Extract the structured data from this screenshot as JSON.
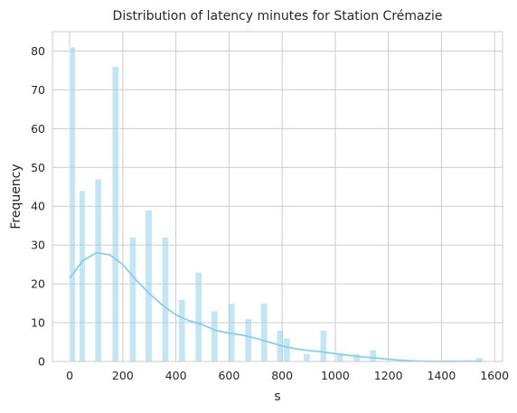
{
  "chart_data": {
    "type": "bar",
    "title": "Distribution of latency minutes for Station Crémazie",
    "xlabel": "s",
    "ylabel": "Frequency",
    "xlim": [
      -65,
      1630
    ],
    "ylim": [
      0,
      85
    ],
    "xticks": [
      0,
      200,
      400,
      600,
      800,
      1000,
      1200,
      1400,
      1600
    ],
    "yticks": [
      0,
      10,
      20,
      30,
      40,
      50,
      60,
      70,
      80
    ],
    "grid": true,
    "bar_color": "#87ceeb",
    "kde_color": "#87ceeb",
    "bins": [
      {
        "x0": 0,
        "x1": 21,
        "count": 81
      },
      {
        "x0": 36,
        "x1": 58,
        "count": 44
      },
      {
        "x0": 95,
        "x1": 120,
        "count": 47
      },
      {
        "x0": 160,
        "x1": 185,
        "count": 76
      },
      {
        "x0": 225,
        "x1": 250,
        "count": 32
      },
      {
        "x0": 285,
        "x1": 310,
        "count": 39
      },
      {
        "x0": 348,
        "x1": 373,
        "count": 32
      },
      {
        "x0": 410,
        "x1": 435,
        "count": 16
      },
      {
        "x0": 473,
        "x1": 498,
        "count": 23
      },
      {
        "x0": 533,
        "x1": 558,
        "count": 13
      },
      {
        "x0": 597,
        "x1": 622,
        "count": 15
      },
      {
        "x0": 660,
        "x1": 685,
        "count": 11
      },
      {
        "x0": 720,
        "x1": 745,
        "count": 15
      },
      {
        "x0": 780,
        "x1": 805,
        "count": 8
      },
      {
        "x0": 805,
        "x1": 830,
        "count": 6
      },
      {
        "x0": 880,
        "x1": 905,
        "count": 2
      },
      {
        "x0": 943,
        "x1": 968,
        "count": 8
      },
      {
        "x0": 1005,
        "x1": 1030,
        "count": 2
      },
      {
        "x0": 1068,
        "x1": 1093,
        "count": 2
      },
      {
        "x0": 1130,
        "x1": 1155,
        "count": 3
      },
      {
        "x0": 1530,
        "x1": 1555,
        "count": 1
      }
    ],
    "kde": {
      "x": [
        0,
        50,
        100,
        150,
        200,
        250,
        300,
        350,
        400,
        450,
        500,
        550,
        600,
        650,
        700,
        750,
        800,
        850,
        900,
        950,
        1000,
        1050,
        1100,
        1150,
        1200,
        1250,
        1300,
        1350,
        1400,
        1450,
        1500,
        1550
      ],
      "y": [
        21.5,
        26.0,
        28.0,
        27.5,
        25.0,
        21.0,
        17.5,
        14.5,
        12.0,
        10.5,
        9.5,
        8.0,
        7.3,
        6.8,
        6.0,
        5.0,
        4.0,
        3.3,
        2.8,
        2.5,
        2.0,
        1.6,
        1.2,
        0.9,
        0.6,
        0.3,
        0.15,
        0.05,
        0.02,
        0.05,
        0.1,
        0.05
      ]
    }
  }
}
